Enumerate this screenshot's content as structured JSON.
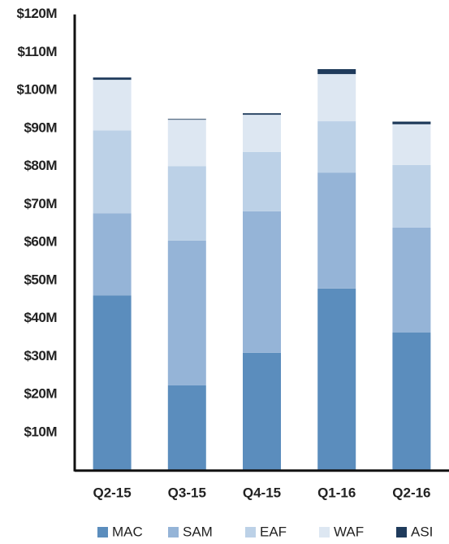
{
  "chart_data": {
    "type": "stacked_bar",
    "categories": [
      "Q2-15",
      "Q3-15",
      "Q4-15",
      "Q1-16",
      "Q2-16"
    ],
    "series": [
      {
        "name": "MAC",
        "color": "#5b8dbd",
        "values": [
          46.1,
          22.4,
          31.0,
          47.9,
          36.3
        ]
      },
      {
        "name": "SAM",
        "color": "#95b4d7",
        "values": [
          21.6,
          38.1,
          37.2,
          30.5,
          27.6
        ]
      },
      {
        "name": "EAF",
        "color": "#bcd1e7",
        "values": [
          21.8,
          19.6,
          15.6,
          13.5,
          16.5
        ]
      },
      {
        "name": "WAF",
        "color": "#dde7f2",
        "values": [
          13.3,
          12.2,
          9.8,
          12.4,
          10.7
        ]
      },
      {
        "name": "ASI",
        "color": "#1f3b5c",
        "values": [
          0.6,
          0.2,
          0.4,
          1.3,
          0.7
        ]
      }
    ],
    "ylim": [
      0,
      120
    ],
    "yticks": [
      {
        "value": 10,
        "label": "$10M"
      },
      {
        "value": 20,
        "label": "$20M"
      },
      {
        "value": 30,
        "label": "$30M"
      },
      {
        "value": 40,
        "label": "$40M"
      },
      {
        "value": 50,
        "label": "$50M"
      },
      {
        "value": 60,
        "label": "$60M"
      },
      {
        "value": 70,
        "label": "$70M"
      },
      {
        "value": 80,
        "label": "$80M"
      },
      {
        "value": 90,
        "label": "$90M"
      },
      {
        "value": 100,
        "label": "$100M"
      },
      {
        "value": 110,
        "label": "$110M"
      },
      {
        "value": 120,
        "label": "$120M"
      }
    ],
    "grid": false
  }
}
